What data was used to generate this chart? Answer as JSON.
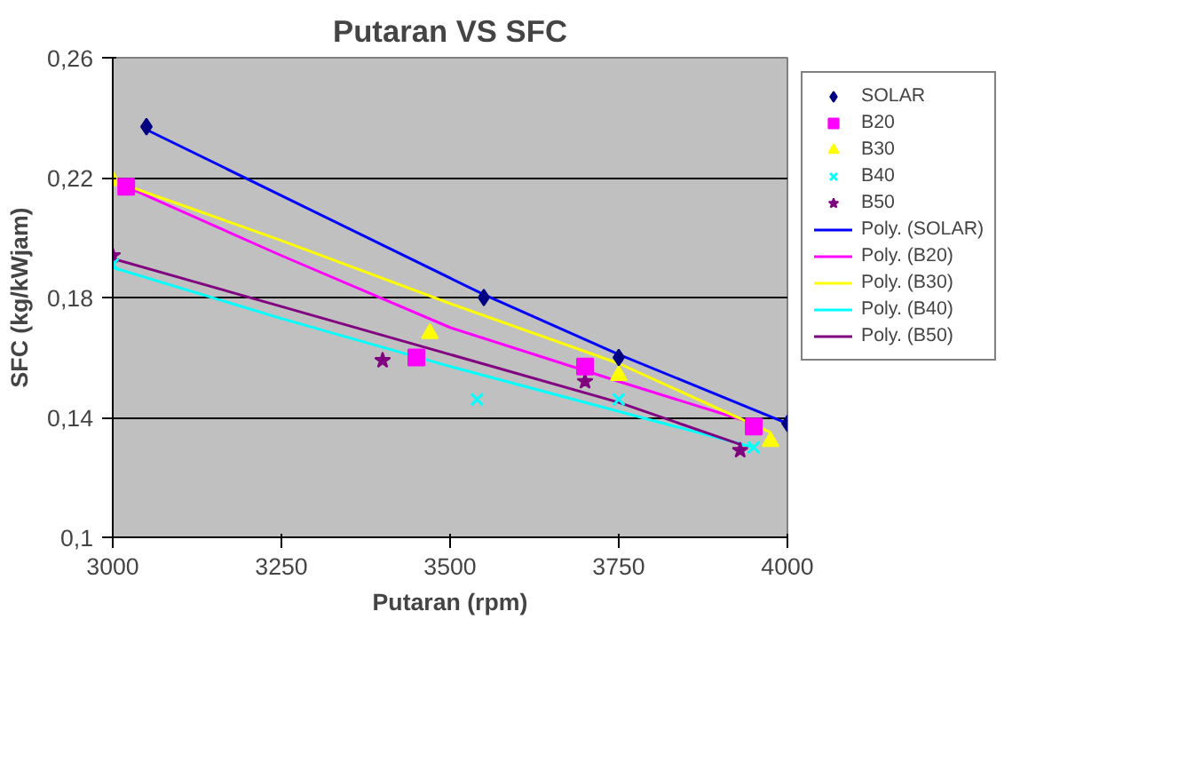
{
  "chart_data": {
    "type": "scatter",
    "title": "Putaran VS SFC",
    "xlabel": "Putaran (rpm)",
    "ylabel": "SFC (kg/kWjam)",
    "xlim": [
      3000,
      4000
    ],
    "xticks": [
      3000,
      3250,
      3500,
      3750,
      4000
    ],
    "ylim": [
      0.1,
      0.26
    ],
    "yticks": [
      {
        "value": 0.1,
        "label": "0,1"
      },
      {
        "value": 0.14,
        "label": "0,14"
      },
      {
        "value": 0.18,
        "label": "0,18"
      },
      {
        "value": 0.22,
        "label": "0,22"
      },
      {
        "value": 0.26,
        "label": "0,26"
      }
    ],
    "grid": "y",
    "legend": "right",
    "series": [
      {
        "name": "SOLAR",
        "marker": "diamond",
        "color": "#000080",
        "x": [
          3050,
          3550,
          3750,
          4000
        ],
        "values": [
          0.237,
          0.18,
          0.16,
          0.138
        ]
      },
      {
        "name": "B20",
        "marker": "square",
        "color": "#ff00ff",
        "x": [
          3020,
          3450,
          3700,
          3950
        ],
        "values": [
          0.217,
          0.16,
          0.157,
          0.137
        ]
      },
      {
        "name": "B30",
        "marker": "triangle",
        "color": "#ffff00",
        "x": [
          3000,
          3470,
          3750,
          3975
        ],
        "values": [
          0.219,
          0.168,
          0.154,
          0.132
        ]
      },
      {
        "name": "B40",
        "marker": "cross",
        "color": "#00ffff",
        "x": [
          3000,
          3540,
          3750,
          3950
        ],
        "values": [
          0.191,
          0.146,
          0.146,
          0.13
        ]
      },
      {
        "name": "B50",
        "marker": "star",
        "color": "#800080",
        "x": [
          3000,
          3400,
          3700,
          3930
        ],
        "values": [
          0.194,
          0.159,
          0.152,
          0.129
        ]
      },
      {
        "name": "Poly. (SOLAR)",
        "type": "line",
        "color": "#0000ff",
        "x": [
          3050,
          3550,
          3750,
          4000
        ],
        "values": [
          0.236,
          0.181,
          0.161,
          0.138
        ]
      },
      {
        "name": "Poly. (B20)",
        "type": "line",
        "color": "#ff00ff",
        "x": [
          3000,
          3250,
          3500,
          3750,
          3950
        ],
        "values": [
          0.219,
          0.194,
          0.17,
          0.152,
          0.138
        ]
      },
      {
        "name": "Poly. (B30)",
        "type": "line",
        "color": "#ffff00",
        "x": [
          3000,
          3250,
          3500,
          3750,
          3975
        ],
        "values": [
          0.219,
          0.199,
          0.178,
          0.158,
          0.135
        ]
      },
      {
        "name": "Poly. (B40)",
        "type": "line",
        "color": "#00ffff",
        "x": [
          3000,
          3250,
          3500,
          3750,
          3950
        ],
        "values": [
          0.19,
          0.173,
          0.157,
          0.142,
          0.13
        ]
      },
      {
        "name": "Poly. (B50)",
        "type": "line",
        "color": "#800080",
        "x": [
          3000,
          3250,
          3500,
          3750,
          3930
        ],
        "values": [
          0.193,
          0.177,
          0.161,
          0.145,
          0.131
        ]
      }
    ]
  }
}
